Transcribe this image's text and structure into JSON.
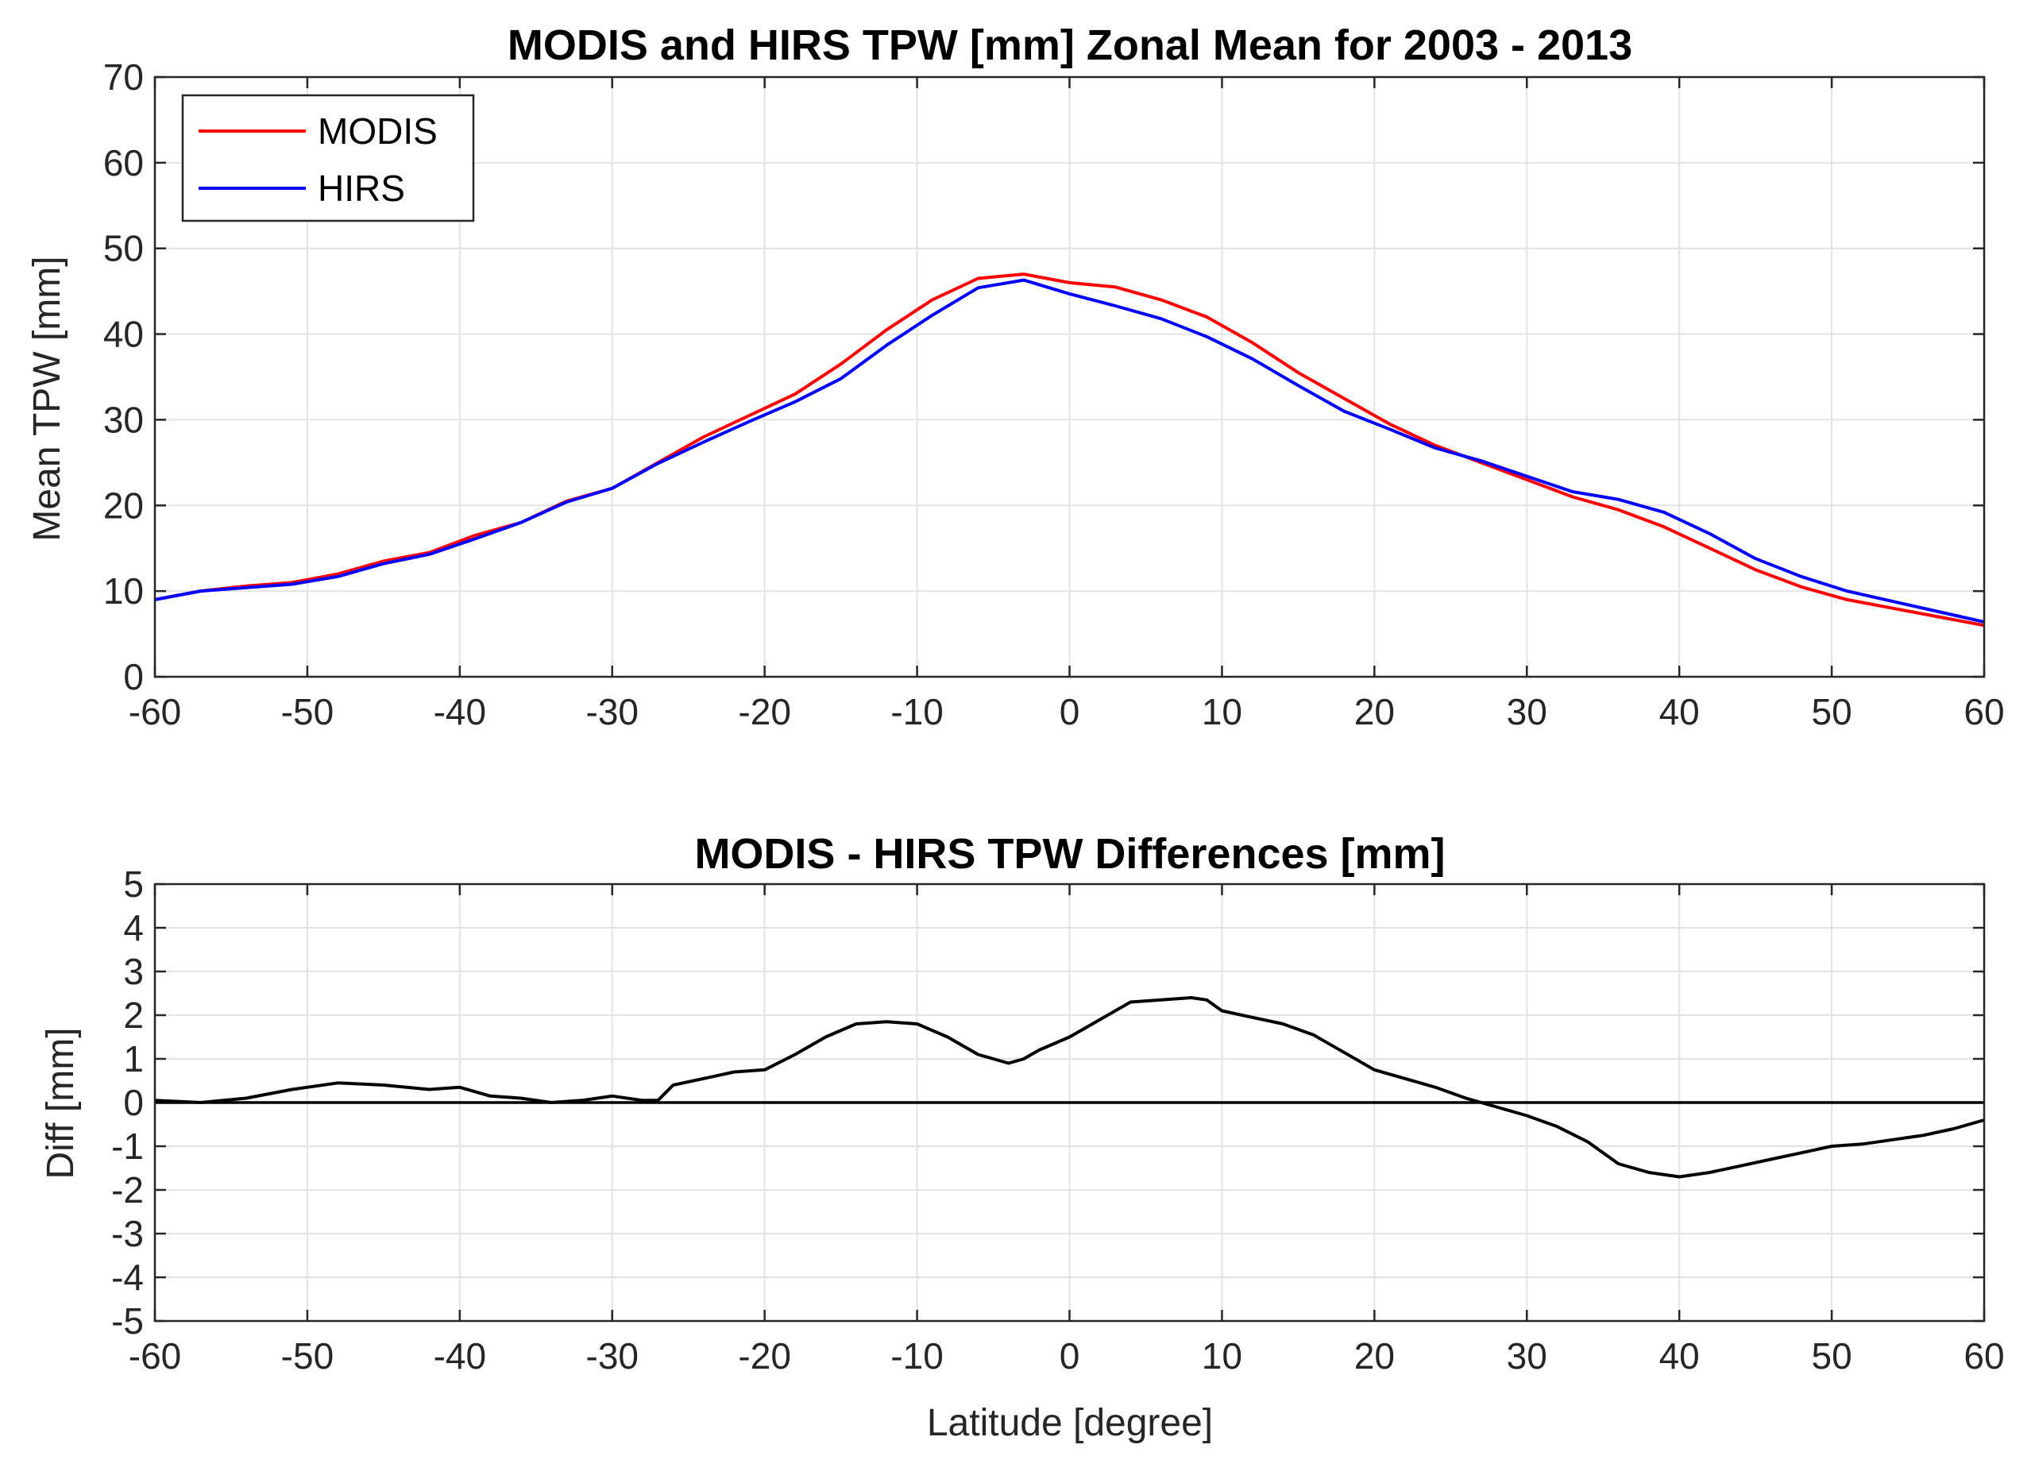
{
  "chart_data": [
    {
      "type": "line",
      "title": "MODIS and HIRS TPW [mm] Zonal Mean for 2003 - 2013",
      "xlabel": "",
      "ylabel": "Mean TPW [mm]",
      "xlim": [
        -60,
        60
      ],
      "ylim": [
        0,
        70
      ],
      "xticks": [
        "-60",
        "-50",
        "-40",
        "-30",
        "-20",
        "-10",
        "0",
        "10",
        "20",
        "30",
        "40",
        "50",
        "60"
      ],
      "yticks": [
        "0",
        "10",
        "20",
        "30",
        "40",
        "50",
        "60",
        "70"
      ],
      "grid": true,
      "legend_position": "top-left",
      "x": [
        -60,
        -57,
        -54,
        -51,
        -48,
        -45,
        -42,
        -39,
        -36,
        -33,
        -30,
        -27,
        -24,
        -21,
        -18,
        -15,
        -12,
        -9,
        -6,
        -3,
        0,
        3,
        6,
        9,
        12,
        15,
        18,
        21,
        24,
        27,
        30,
        33,
        36,
        39,
        42,
        45,
        48,
        51,
        54,
        57,
        60
      ],
      "series": [
        {
          "name": "MODIS",
          "color": "#ff0000",
          "values": [
            9.0,
            10.0,
            10.6,
            11.0,
            12.0,
            13.5,
            14.5,
            16.5,
            18.0,
            20.5,
            22.0,
            25.0,
            28.0,
            30.5,
            33.0,
            36.5,
            40.5,
            44.0,
            46.5,
            47.0,
            46.0,
            45.5,
            44.0,
            42.0,
            39.0,
            35.5,
            32.5,
            29.5,
            27.0,
            25.0,
            23.0,
            21.0,
            19.5,
            17.5,
            15.0,
            12.5,
            10.5,
            9.0,
            8.0,
            7.0,
            6.0
          ]
        },
        {
          "name": "HIRS",
          "color": "#0000ff",
          "values": [
            9.0,
            10.0,
            10.4,
            10.8,
            11.7,
            13.2,
            14.3,
            16.1,
            18.0,
            20.4,
            22.0,
            24.9,
            27.4,
            29.8,
            32.1,
            34.8,
            38.7,
            42.2,
            45.4,
            46.3,
            44.7,
            43.3,
            41.8,
            39.7,
            37.1,
            34.0,
            31.0,
            28.9,
            26.7,
            25.2,
            23.4,
            21.6,
            20.7,
            19.2,
            16.7,
            13.8,
            11.7,
            10.0,
            8.8,
            7.6,
            6.4
          ]
        }
      ]
    },
    {
      "type": "line",
      "title": "MODIS - HIRS TPW Differences [mm]",
      "xlabel": "Latitude [degree]",
      "ylabel": "Diff [mm]",
      "xlim": [
        -60,
        60
      ],
      "ylim": [
        -5,
        5
      ],
      "xticks": [
        "-60",
        "-50",
        "-40",
        "-30",
        "-20",
        "-10",
        "0",
        "10",
        "20",
        "30",
        "40",
        "50",
        "60"
      ],
      "yticks": [
        "-5",
        "-4",
        "-3",
        "-2",
        "-1",
        "0",
        "1",
        "2",
        "3",
        "4",
        "5"
      ],
      "grid": true,
      "reference_line": 0,
      "x": [
        -60,
        -57,
        -54,
        -51,
        -48,
        -45,
        -42,
        -40,
        -38,
        -36,
        -34,
        -32,
        -30,
        -28,
        -27,
        -26,
        -24,
        -22,
        -20,
        -18,
        -16,
        -14,
        -12,
        -10,
        -8,
        -6,
        -4,
        -3,
        -2,
        0,
        2,
        4,
        6,
        8,
        9,
        10,
        12,
        14,
        16,
        18,
        20,
        22,
        24,
        26,
        28,
        30,
        32,
        34,
        36,
        38,
        40,
        42,
        44,
        46,
        48,
        50,
        52,
        54,
        56,
        58,
        60
      ],
      "series": [
        {
          "name": "MODIS - HIRS",
          "color": "#000000",
          "values": [
            0.05,
            0.0,
            0.1,
            0.3,
            0.45,
            0.4,
            0.3,
            0.35,
            0.15,
            0.1,
            0.0,
            0.05,
            0.15,
            0.05,
            0.05,
            0.4,
            0.55,
            0.7,
            0.75,
            1.1,
            1.5,
            1.8,
            1.85,
            1.8,
            1.5,
            1.1,
            0.9,
            1.0,
            1.2,
            1.5,
            1.9,
            2.3,
            2.35,
            2.4,
            2.35,
            2.1,
            1.95,
            1.8,
            1.55,
            1.15,
            0.75,
            0.55,
            0.35,
            0.1,
            -0.1,
            -0.3,
            -0.55,
            -0.9,
            -1.4,
            -1.6,
            -1.7,
            -1.6,
            -1.45,
            -1.3,
            -1.15,
            -1.0,
            -0.95,
            -0.85,
            -0.75,
            -0.6,
            -0.4
          ]
        }
      ]
    }
  ]
}
